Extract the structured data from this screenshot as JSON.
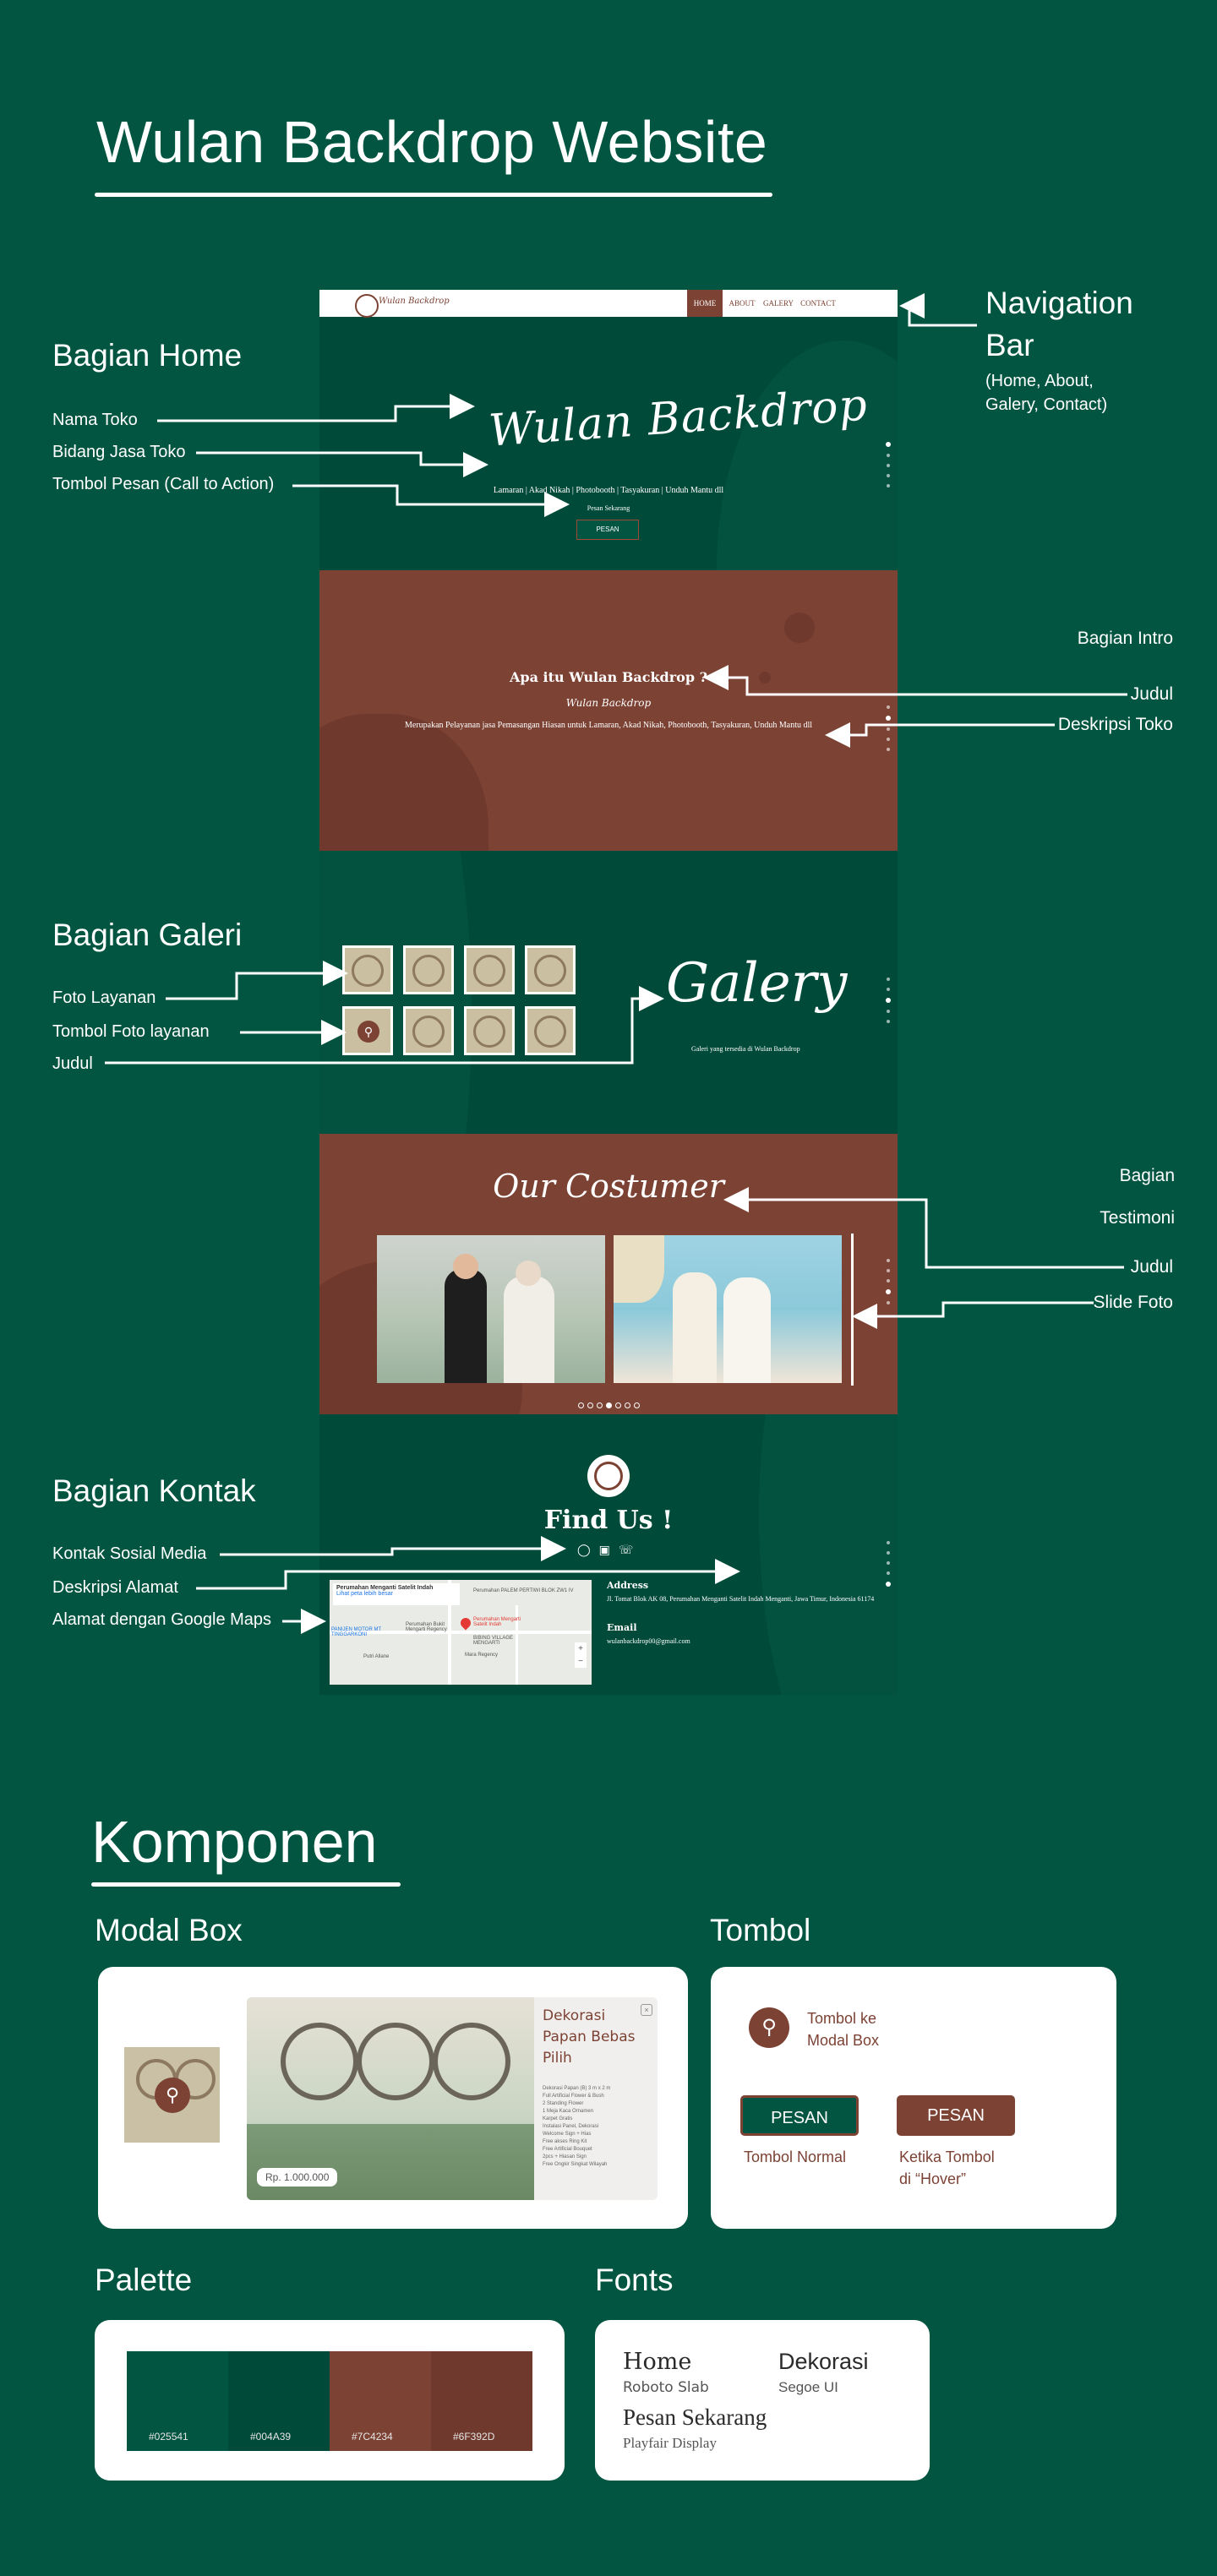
{
  "page_title": "Wulan Backdrop Website",
  "sections": {
    "home": {
      "title": "Bagian Home",
      "annotations": [
        "Nama Toko",
        "Bidang Jasa Toko",
        "Tombol Pesan (Call to Action)"
      ]
    },
    "navigation": {
      "title_line1": "Navigation",
      "title_line2": "Bar",
      "desc_line1": "(Home, About,",
      "desc_line2": "Galery, Contact)"
    },
    "intro": {
      "title": "Bagian Intro",
      "annotations": [
        "Judul",
        "Deskripsi Toko"
      ]
    },
    "galeri": {
      "title": "Bagian Galeri",
      "annotations": [
        "Foto Layanan",
        "Tombol Foto layanan",
        "Judul"
      ]
    },
    "testimoni": {
      "title_line1": "Bagian",
      "title_line2": "Testimoni",
      "annotations": [
        "Judul",
        "Slide Foto"
      ]
    },
    "kontak": {
      "title": "Bagian Kontak",
      "annotations": [
        "Kontak Sosial Media",
        "Deskripsi Alamat",
        "Alamat dengan Google Maps"
      ]
    }
  },
  "mockup": {
    "nav": {
      "brand": "Wulan Backdrop",
      "items": [
        "HOME",
        "ABOUT",
        "GALERY",
        "CONTACT"
      ],
      "active_index": 0
    },
    "hero": {
      "script_title": "Wulan Backdrop",
      "services": "Lamaran | Akad Nikah | Photobooth | Tasyakuran | Unduh Mantu dll",
      "cta_label": "Pesan Sekarang",
      "cta_button": "PESAN"
    },
    "intro": {
      "title": "Apa itu Wulan Backdrop ?",
      "script": "Wulan Backdrop",
      "description": "Merupakan Pelayanan jasa Pemasangan Hiasan untuk Lamaran, Akad Nikah, Photobooth, Tasyakuran, Unduh Mantu dll"
    },
    "gallery": {
      "script_title": "Galery",
      "subtitle": "Galeri yang tersedia di Wulan Backdrop"
    },
    "testimoni": {
      "script_title": "Our Costumer",
      "slide_count": 7,
      "active_slide": 3
    },
    "contact": {
      "title": "Find Us !",
      "social_icons": [
        "instagram-icon",
        "facebook-icon",
        "whatsapp-icon"
      ],
      "map_place": "Perumahan Menganti Satelit Indah",
      "map_link": "Lihat peta lebih besar",
      "map_labels": [
        "Perumahan PALEM PERTIWI BLOK ZW1 IV",
        "Perumahan Bukit Mengarti Regency",
        "Perumahan Mengarti Satelit Indah",
        "BIBING VILLAGE MENGARTI",
        "Mara Regency",
        "PANIJEN MOTOR MT TINGGARKONI",
        "Putri Allane"
      ],
      "address_title": "Address",
      "address": "Jl. Tomat Blok AK 08, Perumahan Menganti Satelit Indah Menganti, Jawa Timur, Indonesia 61174",
      "email_title": "Email",
      "email": "wulanbackdrop00@gmail.com"
    },
    "scroll_dots": 5
  },
  "komponen": {
    "title": "Komponen",
    "modal_box": {
      "title": "Modal Box",
      "product_title": "Dekorasi Papan Bebas Pilih",
      "price": "Rp. 1.000.000",
      "close": "×",
      "features": [
        "Dekorasi Papan (B) 3 m x 2 m",
        "Full Artificial Flower & Bush",
        "2 Standing Flower",
        "1 Meja Kaca Ornamen",
        "Karpet Gratis",
        "Instalasi Panel, Dekorasi",
        "Welcome Sign + Hias",
        "Free akses Ring Kit",
        "Free Artificial Bouquet",
        "2pcs + Hiasan Sign",
        "Free Ongkir Singkat Wilayah"
      ]
    },
    "tombol": {
      "title": "Tombol",
      "modal_label_line1": "Tombol ke",
      "modal_label_line2": "Modal Box",
      "normal_button": "PESAN",
      "normal_caption": "Tombol Normal",
      "hover_button": "PESAN",
      "hover_caption_line1": "Ketika Tombol",
      "hover_caption_line2": "di “Hover”"
    },
    "palette": {
      "title": "Palette",
      "colors": [
        "#025541",
        "#004A39",
        "#7C4234",
        "#6F392D"
      ]
    },
    "fonts": {
      "title": "Fonts",
      "samples": [
        {
          "sample": "Home",
          "name": "Roboto Slab"
        },
        {
          "sample": "Dekorasi",
          "name": "Segoe UI"
        },
        {
          "sample": "Pesan Sekarang",
          "name": "Playfair Display"
        }
      ]
    }
  }
}
